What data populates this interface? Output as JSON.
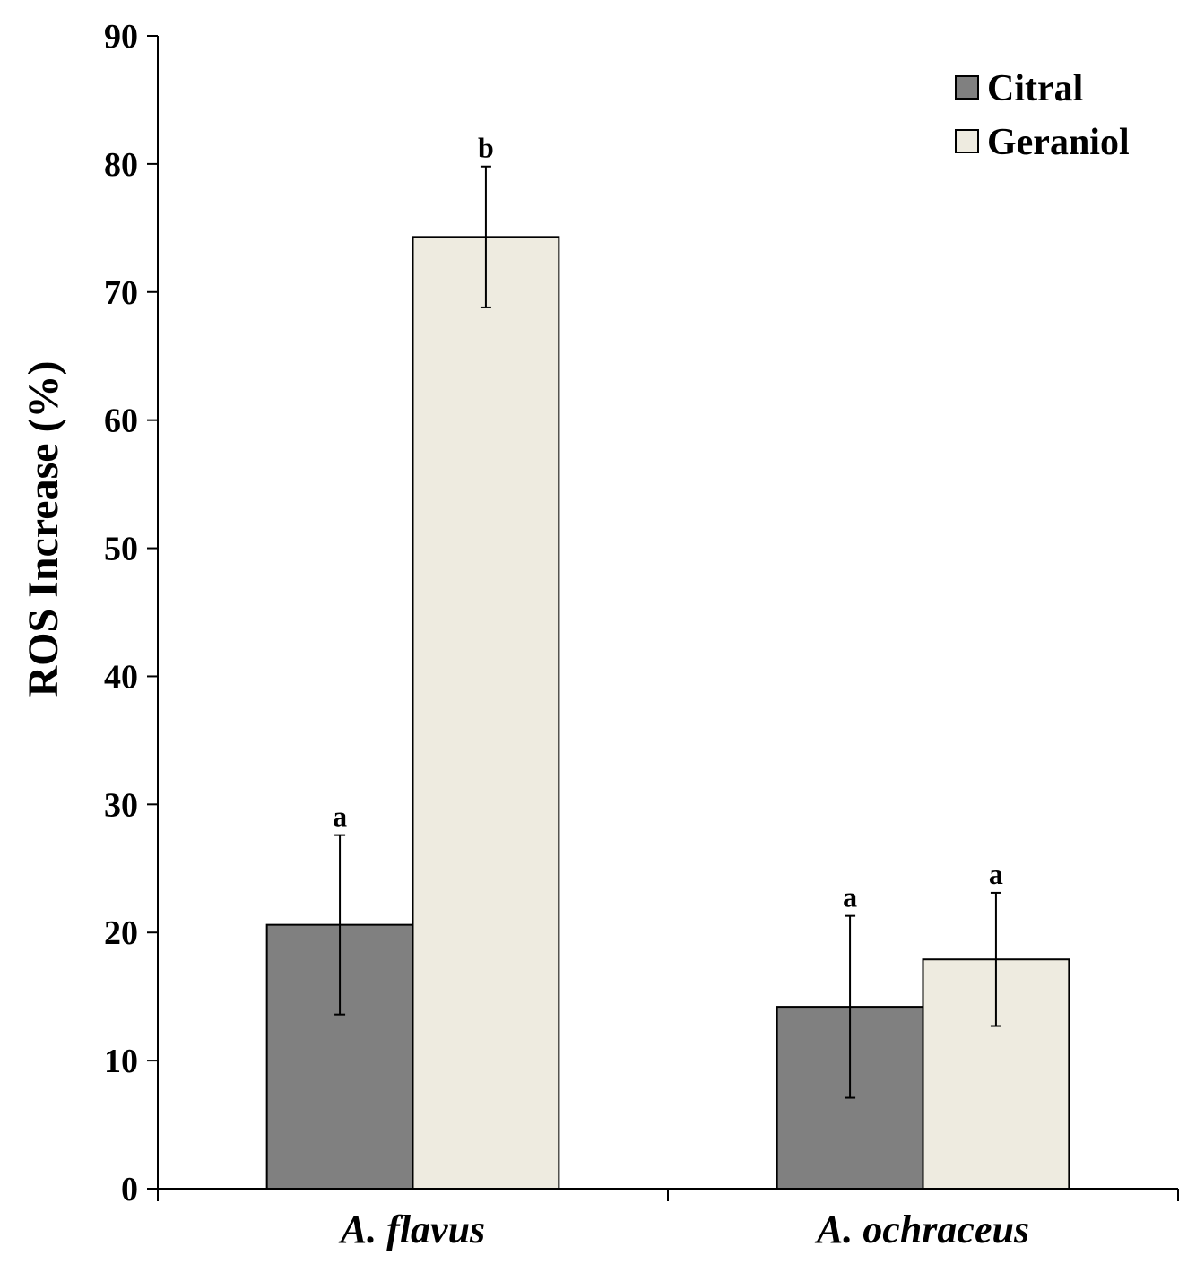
{
  "chart_data": {
    "type": "bar",
    "title": "",
    "xlabel": "",
    "ylabel": "ROS Increase  (%)",
    "ylim": [
      0,
      90
    ],
    "yticks": [
      0,
      10,
      20,
      30,
      40,
      50,
      60,
      70,
      80,
      90
    ],
    "categories": [
      "A. flavus",
      "A. ochraceus"
    ],
    "grid": false,
    "legend_position": "top-right",
    "series": [
      {
        "name": "Citral",
        "color": "#808080",
        "values": [
          20.6,
          14.2
        ],
        "errors": [
          7.0,
          7.1
        ],
        "labels": [
          "a",
          "a"
        ]
      },
      {
        "name": "Geraniol",
        "color": "#eeebe0",
        "values": [
          74.3,
          17.9
        ],
        "errors": [
          5.5,
          5.2
        ],
        "labels": [
          "b",
          "a"
        ]
      }
    ]
  }
}
